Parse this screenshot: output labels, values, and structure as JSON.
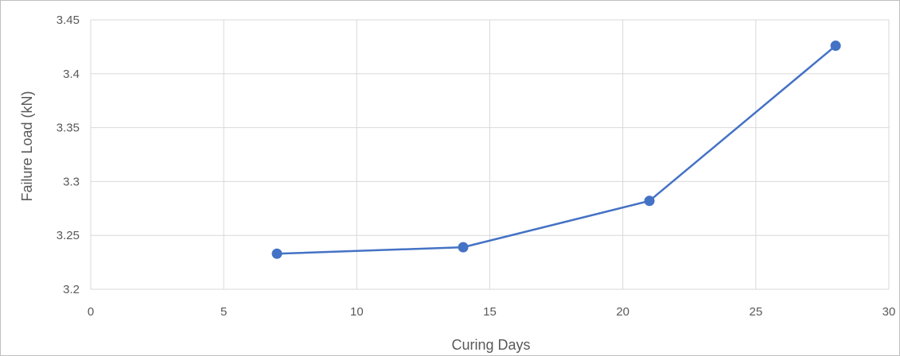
{
  "chart_data": {
    "type": "line",
    "title": "",
    "xlabel": "Curing Days",
    "ylabel": "Failure Load (kN)",
    "xlim": [
      0,
      30
    ],
    "ylim": [
      3.2,
      3.45
    ],
    "x_ticks": [
      "0",
      "5",
      "10",
      "15",
      "20",
      "25",
      "30"
    ],
    "y_ticks": [
      "3.2",
      "3.25",
      "3.3",
      "3.35",
      "3.4",
      "3.45"
    ],
    "grid": true,
    "legend": "none",
    "series": [
      {
        "x": [
          7,
          14,
          21,
          28
        ],
        "y": [
          3.233,
          3.239,
          3.282,
          3.426
        ],
        "color": "#4472c4"
      }
    ]
  }
}
